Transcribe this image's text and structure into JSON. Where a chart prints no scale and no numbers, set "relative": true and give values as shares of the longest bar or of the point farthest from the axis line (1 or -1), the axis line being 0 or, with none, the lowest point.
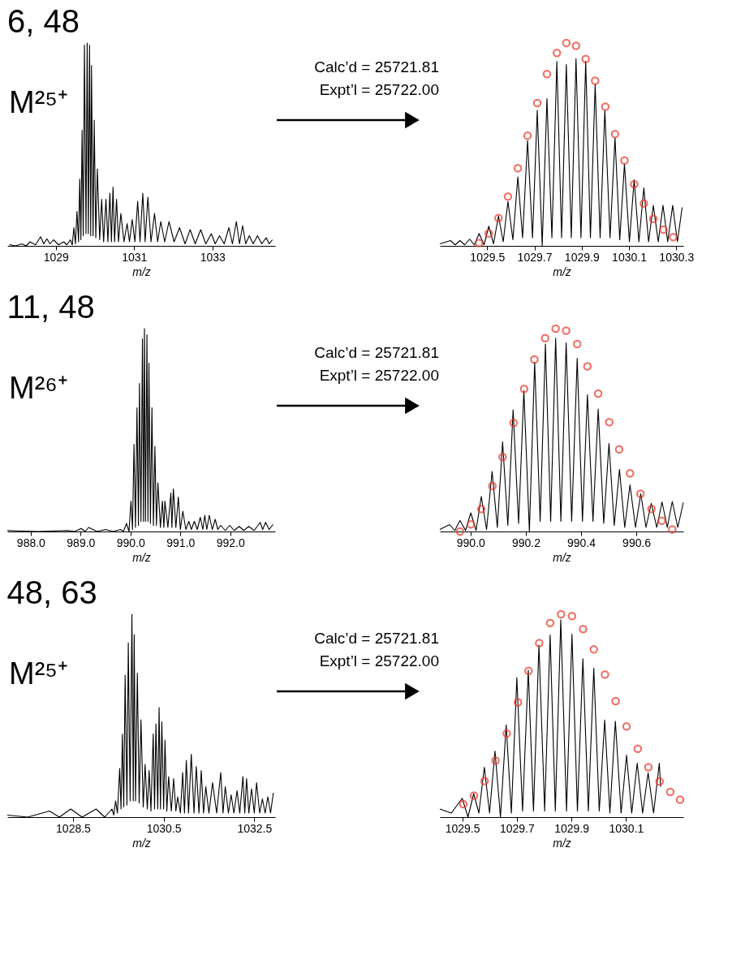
{
  "chart_data": [
    {
      "type": "line",
      "relative": true,
      "title": "6, 48",
      "xlabel": "m/z",
      "annotations": [
        "M²⁵⁺"
      ],
      "xlim": [
        1027.76,
        1034.6
      ],
      "xticks": [
        1029,
        1031,
        1033
      ],
      "series": [
        {
          "color": "#000000",
          "x": [
            1027.81,
            1027.97,
            1028.13,
            1028.24,
            1028.34,
            1028.48,
            1028.61,
            1028.69,
            1028.77,
            1028.85,
            1028.94,
            1029.07,
            1029.2,
            1029.28,
            1029.37,
            1029.42,
            1029.46,
            1029.5,
            1029.54,
            1029.58,
            1029.61,
            1029.64,
            1029.67,
            1029.7,
            1029.73,
            1029.77,
            1029.8,
            1029.83,
            1029.86,
            1029.89,
            1029.91,
            1029.95,
            1029.98,
            1030.02,
            1030.06,
            1030.12,
            1030.17,
            1030.22,
            1030.28,
            1030.33,
            1030.38,
            1030.42,
            1030.46,
            1030.5,
            1030.55,
            1030.6,
            1030.66,
            1030.74,
            1030.82,
            1030.88,
            1030.95,
            1031.02,
            1031.09,
            1031.15,
            1031.22,
            1031.28,
            1031.35,
            1031.43,
            1031.52,
            1031.6,
            1031.68,
            1031.78,
            1031.89,
            1032.02,
            1032.16,
            1032.3,
            1032.43,
            1032.56,
            1032.7,
            1032.83,
            1032.97,
            1033.07,
            1033.18,
            1033.3,
            1033.42,
            1033.51,
            1033.61,
            1033.69,
            1033.77,
            1033.85,
            1033.94,
            1034.04,
            1034.15,
            1034.26,
            1034.37,
            1034.45,
            1034.53
          ],
          "values": [
            0.006,
            0.0,
            0.01,
            0.0,
            0.02,
            0.005,
            0.045,
            0.01,
            0.035,
            0.01,
            0.03,
            0.005,
            0.02,
            0.005,
            0.03,
            0.005,
            0.09,
            0.01,
            0.17,
            0.02,
            0.33,
            0.03,
            0.57,
            0.05,
            0.99,
            0.06,
            1.0,
            0.06,
            0.99,
            0.05,
            0.89,
            0.05,
            0.62,
            0.04,
            0.38,
            0.03,
            0.23,
            0.02,
            0.23,
            0.02,
            0.26,
            0.02,
            0.29,
            0.02,
            0.23,
            0.02,
            0.16,
            0.02,
            0.11,
            0.02,
            0.13,
            0.02,
            0.22,
            0.02,
            0.26,
            0.02,
            0.24,
            0.02,
            0.16,
            0.02,
            0.12,
            0.02,
            0.12,
            0.02,
            0.09,
            0.01,
            0.08,
            0.01,
            0.08,
            0.01,
            0.06,
            0.01,
            0.05,
            0.01,
            0.09,
            0.01,
            0.12,
            0.01,
            0.1,
            0.01,
            0.05,
            0.01,
            0.05,
            0.01,
            0.04,
            0.01,
            0.03
          ]
        }
      ]
    },
    {
      "type": "line",
      "relative": true,
      "xlabel": "m/z",
      "annotations": [
        "Calc’d = 25721.81",
        "Expt’l = 25722.00"
      ],
      "xlim": [
        1029.3,
        1030.33
      ],
      "xticks": [
        1029.5,
        1029.7,
        1029.9,
        1030.1,
        1030.3
      ],
      "series": [
        {
          "color": "#000000",
          "x": [
            1029.3,
            1029.345,
            1029.365,
            1029.385,
            1029.405,
            1029.426,
            1029.446,
            1029.466,
            1029.487,
            1029.507,
            1029.527,
            1029.548,
            1029.568,
            1029.588,
            1029.609,
            1029.63,
            1029.65,
            1029.671,
            1029.692,
            1029.712,
            1029.733,
            1029.753,
            1029.774,
            1029.795,
            1029.815,
            1029.835,
            1029.856,
            1029.876,
            1029.897,
            1029.917,
            1029.937,
            1029.957,
            1029.978,
            1029.998,
            1030.02,
            1030.041,
            1030.061,
            1030.081,
            1030.102,
            1030.122,
            1030.142,
            1030.163,
            1030.183,
            1030.203,
            1030.224,
            1030.244,
            1030.264,
            1030.285,
            1030.305,
            1030.325
          ],
          "values": [
            0.01,
            0.026,
            0.005,
            0.026,
            0.005,
            0.033,
            0.005,
            0.061,
            0.005,
            0.097,
            0.01,
            0.147,
            0.02,
            0.219,
            0.03,
            0.34,
            0.04,
            0.519,
            0.04,
            0.669,
            0.0,
            0.726,
            0.04,
            0.909,
            0.04,
            0.894,
            0.04,
            0.923,
            0.04,
            0.911,
            0.04,
            0.797,
            0.04,
            0.669,
            0.04,
            0.533,
            0.03,
            0.404,
            0.02,
            0.326,
            0.02,
            0.286,
            0.02,
            0.2,
            0.02,
            0.2,
            0.02,
            0.2,
            0.02,
            0.19
          ]
        },
        {
          "type": "scatter",
          "marker": "circle",
          "color": "#e8392a",
          "x": [
            1029.466,
            1029.507,
            1029.548,
            1029.588,
            1029.63,
            1029.671,
            1029.712,
            1029.753,
            1029.795,
            1029.835,
            1029.876,
            1029.917,
            1029.957,
            1030.0,
            1030.041,
            1030.081,
            1030.122,
            1030.163,
            1030.203,
            1030.246,
            1030.287
          ],
          "values": [
            0.014,
            0.061,
            0.137,
            0.243,
            0.383,
            0.543,
            0.704,
            0.847,
            0.951,
            1.0,
            0.986,
            0.921,
            0.814,
            0.686,
            0.551,
            0.421,
            0.304,
            0.209,
            0.133,
            0.08,
            0.043
          ]
        }
      ]
    },
    {
      "type": "line",
      "relative": true,
      "title": "11, 48",
      "xlabel": "m/z",
      "annotations": [
        "M²⁶⁺"
      ],
      "xlim": [
        987.53,
        992.9
      ],
      "xticks": [
        {
          "value": 988,
          "label": "988.0"
        },
        {
          "value": 989,
          "label": "989.0"
        },
        {
          "value": 990,
          "label": "990.0"
        },
        {
          "value": 991,
          "label": "991.0"
        },
        {
          "value": 992,
          "label": "992.0"
        }
      ],
      "series": [
        {
          "color": "#000000",
          "x": [
            987.53,
            988.14,
            988.74,
            988.88,
            989.01,
            989.09,
            989.16,
            989.33,
            989.5,
            989.65,
            989.8,
            989.86,
            989.92,
            989.97,
            990.01,
            990.04,
            990.07,
            990.1,
            990.13,
            990.16,
            990.18,
            990.21,
            990.24,
            990.26,
            990.28,
            990.3,
            990.33,
            990.35,
            990.37,
            990.4,
            990.43,
            990.46,
            990.49,
            990.52,
            990.55,
            990.6,
            990.64,
            990.67,
            990.69,
            990.75,
            990.81,
            990.83,
            990.86,
            990.91,
            990.96,
            991.0,
            991.05,
            991.11,
            991.17,
            991.22,
            991.28,
            991.34,
            991.4,
            991.45,
            991.49,
            991.53,
            991.58,
            991.64,
            991.7,
            991.75,
            991.81,
            991.9,
            991.99,
            992.08,
            992.18,
            992.27,
            992.37,
            992.48,
            992.6,
            992.65,
            992.71,
            992.78,
            992.86
          ],
          "values": [
            0.005,
            0.0,
            0.005,
            0.0,
            0.015,
            0.0,
            0.02,
            0.0,
            0.01,
            0.0,
            0.01,
            0.0,
            0.04,
            0.0,
            0.15,
            0.01,
            0.43,
            0.02,
            0.61,
            0.03,
            0.73,
            0.05,
            0.95,
            0.05,
            1.0,
            0.05,
            0.97,
            0.05,
            0.83,
            0.04,
            0.61,
            0.03,
            0.42,
            0.03,
            0.24,
            0.02,
            0.15,
            0.02,
            0.15,
            0.02,
            0.19,
            0.02,
            0.21,
            0.02,
            0.17,
            0.01,
            0.1,
            0.01,
            0.05,
            0.01,
            0.05,
            0.01,
            0.07,
            0.01,
            0.08,
            0.01,
            0.08,
            0.01,
            0.06,
            0.01,
            0.03,
            0.005,
            0.03,
            0.005,
            0.025,
            0.005,
            0.025,
            0.005,
            0.045,
            0.01,
            0.045,
            0.01,
            0.035
          ]
        }
      ]
    },
    {
      "type": "line",
      "relative": true,
      "xlabel": "m/z",
      "annotations": [
        "Calc’d = 25721.81",
        "Expt’l = 25722.00"
      ],
      "xlim": [
        989.889,
        990.77
      ],
      "xticks": [
        {
          "value": 990,
          "label": "990.0"
        },
        990.2,
        990.4,
        990.6
      ],
      "series": [
        {
          "color": "#000000",
          "x": [
            989.889,
            989.924,
            989.943,
            989.962,
            989.982,
            990.001,
            990.02,
            990.039,
            990.058,
            990.078,
            990.097,
            990.116,
            990.135,
            990.154,
            990.174,
            990.193,
            990.213,
            990.232,
            990.252,
            990.271,
            990.29,
            990.308,
            990.327,
            990.346,
            990.366,
            990.386,
            990.405,
            990.423,
            990.443,
            990.462,
            990.482,
            990.501,
            990.52,
            990.539,
            990.558,
            990.577,
            990.597,
            990.616,
            990.635,
            990.654,
            990.674,
            990.693,
            990.712,
            990.73,
            990.75,
            990.77
          ],
          "values": [
            0.01,
            0.034,
            0.005,
            0.054,
            0.005,
            0.092,
            0.005,
            0.173,
            0.01,
            0.296,
            0.02,
            0.442,
            0.03,
            0.6,
            0.04,
            0.695,
            0.0,
            0.835,
            0.05,
            0.924,
            0.05,
            0.953,
            0.05,
            0.93,
            0.05,
            0.854,
            0.05,
            0.675,
            0.05,
            0.604,
            0.04,
            0.434,
            0.03,
            0.306,
            0.02,
            0.23,
            0.02,
            0.186,
            0.02,
            0.139,
            0.02,
            0.146,
            0.02,
            0.148,
            0.02,
            0.143
          ]
        },
        {
          "type": "scatter",
          "marker": "circle",
          "color": "#e8392a",
          "x": [
            989.962,
            990.001,
            990.039,
            990.079,
            990.116,
            990.156,
            990.194,
            990.231,
            990.27,
            990.308,
            990.346,
            990.386,
            990.423,
            990.462,
            990.502,
            990.538,
            990.577,
            990.615,
            990.655,
            990.692,
            990.73
          ],
          "values": [
            0.0,
            0.035,
            0.111,
            0.224,
            0.367,
            0.535,
            0.703,
            0.848,
            0.953,
            1.0,
            0.99,
            0.924,
            0.814,
            0.68,
            0.539,
            0.405,
            0.287,
            0.186,
            0.111,
            0.053,
            0.01
          ]
        }
      ]
    },
    {
      "type": "line",
      "relative": true,
      "title": "48, 63",
      "xlabel": "m/z",
      "annotations": [
        "M²⁵⁺"
      ],
      "xlim": [
        1027.05,
        1032.96
      ],
      "xticks": [
        1028.5,
        1030.5,
        1032.5
      ],
      "series": [
        {
          "color": "#000000",
          "x": [
            1027.05,
            1027.5,
            1027.98,
            1028.2,
            1028.45,
            1028.7,
            1029.01,
            1029.2,
            1029.36,
            1029.4,
            1029.44,
            1029.48,
            1029.53,
            1029.56,
            1029.59,
            1029.62,
            1029.65,
            1029.69,
            1029.72,
            1029.76,
            1029.8,
            1029.83,
            1029.85,
            1029.88,
            1029.92,
            1029.96,
            1030.0,
            1030.05,
            1030.09,
            1030.14,
            1030.18,
            1030.22,
            1030.27,
            1030.3,
            1030.33,
            1030.37,
            1030.4,
            1030.43,
            1030.46,
            1030.5,
            1030.53,
            1030.57,
            1030.61,
            1030.67,
            1030.72,
            1030.77,
            1030.81,
            1030.87,
            1030.92,
            1030.96,
            1031.0,
            1031.05,
            1031.11,
            1031.17,
            1031.22,
            1031.28,
            1031.33,
            1031.38,
            1031.43,
            1031.5,
            1031.58,
            1031.67,
            1031.76,
            1031.81,
            1031.86,
            1031.93,
            1031.99,
            1032.05,
            1032.12,
            1032.18,
            1032.25,
            1032.29,
            1032.33,
            1032.38,
            1032.44,
            1032.5,
            1032.55,
            1032.62,
            1032.68,
            1032.74,
            1032.8,
            1032.86,
            1032.92
          ],
          "values": [
            0.01,
            0.0,
            0.03,
            0.0,
            0.04,
            0.0,
            0.04,
            0.0,
            0.04,
            0.01,
            0.08,
            0.02,
            0.24,
            0.04,
            0.41,
            0.05,
            0.7,
            0.06,
            0.86,
            0.08,
            1.0,
            0.08,
            0.9,
            0.08,
            0.71,
            0.07,
            0.48,
            0.05,
            0.26,
            0.04,
            0.23,
            0.03,
            0.41,
            0.04,
            0.46,
            0.04,
            0.54,
            0.04,
            0.47,
            0.04,
            0.38,
            0.03,
            0.2,
            0.03,
            0.19,
            0.03,
            0.1,
            0.02,
            0.22,
            0.02,
            0.28,
            0.02,
            0.31,
            0.02,
            0.25,
            0.02,
            0.23,
            0.02,
            0.15,
            0.02,
            0.17,
            0.02,
            0.22,
            0.02,
            0.15,
            0.02,
            0.11,
            0.02,
            0.13,
            0.02,
            0.2,
            0.02,
            0.19,
            0.02,
            0.14,
            0.02,
            0.17,
            0.02,
            0.09,
            0.02,
            0.1,
            0.02,
            0.12
          ]
        }
      ]
    },
    {
      "type": "line",
      "relative": true,
      "xlabel": "m/z",
      "annotations": [
        "Calc’d = 25721.81",
        "Expt’l = 25722.00"
      ],
      "xlim": [
        1029.418,
        1030.31
      ],
      "xticks": [
        1029.5,
        1029.7,
        1029.9,
        1030.1
      ],
      "series": [
        {
          "color": "#000000",
          "x": [
            1029.418,
            1029.46,
            1029.5,
            1029.521,
            1029.542,
            1029.561,
            1029.581,
            1029.6,
            1029.62,
            1029.64,
            1029.661,
            1029.68,
            1029.7,
            1029.721,
            1029.742,
            1029.761,
            1029.781,
            1029.802,
            1029.822,
            1029.841,
            1029.861,
            1029.882,
            1029.902,
            1029.922,
            1029.942,
            1029.962,
            1029.982,
            1030.002,
            1030.022,
            1030.041,
            1030.061,
            1030.082,
            1030.102,
            1030.121,
            1030.141,
            1030.161,
            1030.181,
            1030.201,
            1030.222,
            1030.227
          ],
          "values": [
            0.04,
            0.02,
            0.093,
            0.0,
            0.116,
            0.02,
            0.246,
            0.02,
            0.326,
            0.0,
            0.455,
            0.02,
            0.688,
            0.03,
            0.725,
            0.03,
            0.848,
            0.03,
            0.898,
            0.03,
            0.973,
            0.03,
            0.902,
            0.03,
            0.781,
            0.03,
            0.734,
            0.03,
            0.479,
            0.02,
            0.473,
            0.02,
            0.306,
            0.02,
            0.266,
            0.02,
            0.219,
            0.02,
            0.266,
            0.15
          ]
        },
        {
          "type": "scatter",
          "marker": "circle",
          "color": "#e8392a",
          "x": [
            1029.504,
            1029.543,
            1029.582,
            1029.622,
            1029.663,
            1029.704,
            1029.743,
            1029.782,
            1029.822,
            1029.862,
            1029.902,
            1029.943,
            1029.982,
            1030.023,
            1030.062,
            1030.102,
            1030.143,
            1030.182,
            1030.223,
            1030.262,
            1030.298
          ],
          "values": [
            0.064,
            0.106,
            0.178,
            0.279,
            0.412,
            0.566,
            0.721,
            0.858,
            0.957,
            1.0,
            0.991,
            0.927,
            0.827,
            0.703,
            0.572,
            0.447,
            0.337,
            0.246,
            0.176,
            0.124,
            0.086
          ]
        }
      ]
    }
  ]
}
